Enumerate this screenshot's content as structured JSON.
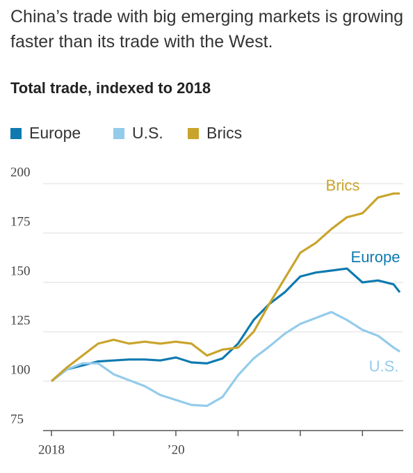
{
  "chart_data": {
    "type": "line",
    "title": "China’s trade with big emerging markets is growing faster than its trade with the West.",
    "subtitle": "Total trade, indexed to 2018",
    "x": [
      2018,
      2018.25,
      2018.5,
      2018.75,
      2019,
      2019.25,
      2019.5,
      2019.75,
      2020,
      2020.25,
      2020.5,
      2020.75,
      2021,
      2021.25,
      2021.5,
      2021.75,
      2022,
      2022.25,
      2022.5,
      2022.75,
      2023,
      2023.25,
      2023.5,
      2023.6
    ],
    "series": [
      {
        "name": "Europe",
        "color": "#0e7ab0",
        "values": [
          100,
          106,
          108,
          110,
          110.5,
          111,
          111,
          110.5,
          112,
          109.5,
          109,
          111.5,
          119,
          131,
          139,
          145,
          153,
          155,
          156,
          157,
          150,
          151,
          149,
          145
        ]
      },
      {
        "name": "U.S.",
        "color": "#94cbeb",
        "values": [
          100,
          106,
          109,
          109,
          103.5,
          100.5,
          97.5,
          93,
          90.5,
          88,
          87.5,
          92,
          103,
          111.5,
          117.5,
          124,
          129,
          132,
          135,
          131,
          126,
          123,
          117,
          115
        ]
      },
      {
        "name": "Brics",
        "color": "#c9a42c",
        "values": [
          100,
          107,
          113,
          119,
          121,
          119,
          120,
          119,
          120,
          119,
          113,
          116,
          117,
          125,
          139,
          152,
          165,
          170,
          177,
          183,
          185,
          193,
          195,
          195
        ]
      }
    ],
    "xlim": [
      2018,
      2023.6
    ],
    "xticks": [
      2018,
      {
        "value": 2019,
        "label": null
      },
      {
        "value": 2020,
        "label": "’20"
      },
      {
        "value": 2021,
        "label": null
      },
      {
        "value": 2022,
        "label": null
      },
      {
        "value": 2023,
        "label": null
      }
    ],
    "ylim": [
      75,
      200
    ],
    "yticks": [
      75,
      100,
      125,
      150,
      175,
      200
    ],
    "grid": true
  }
}
